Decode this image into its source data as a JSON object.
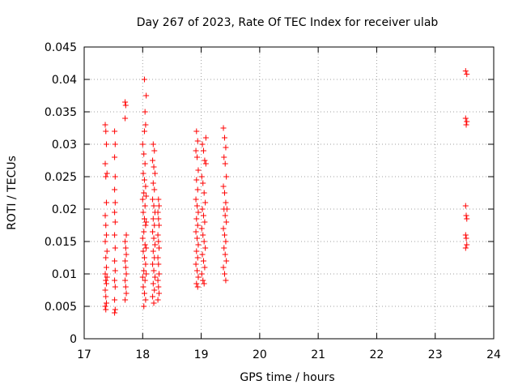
{
  "chart_data": {
    "type": "scatter",
    "title": "Day 267 of 2023, Rate Of TEC Index for receiver ulab",
    "xlabel": "GPS time / hours",
    "ylabel": "ROTI / TECUs",
    "xlim": [
      17,
      24
    ],
    "ylim": [
      0,
      0.045
    ],
    "xticks": [
      "17",
      "18",
      "19",
      "20",
      "21",
      "22",
      "23",
      "24"
    ],
    "yticks": [
      "0",
      "0.005",
      "0.01",
      "0.015",
      "0.02",
      "0.025",
      "0.03",
      "0.035",
      "0.04",
      "0.045"
    ],
    "grid": true,
    "grid_style": "dotted",
    "marker": "+",
    "marker_color": "#ff0000",
    "series": [
      {
        "points": [
          [
            17.36,
            0.033
          ],
          [
            17.37,
            0.032
          ],
          [
            17.38,
            0.03
          ],
          [
            17.36,
            0.027
          ],
          [
            17.39,
            0.0255
          ],
          [
            17.37,
            0.025
          ],
          [
            17.38,
            0.021
          ],
          [
            17.36,
            0.019
          ],
          [
            17.37,
            0.0175
          ],
          [
            17.38,
            0.016
          ],
          [
            17.36,
            0.015
          ],
          [
            17.37,
            0.0125
          ],
          [
            17.38,
            0.011
          ],
          [
            17.36,
            0.01
          ],
          [
            17.37,
            0.009
          ],
          [
            17.38,
            0.0085
          ],
          [
            17.36,
            0.0075
          ],
          [
            17.37,
            0.0065
          ],
          [
            17.38,
            0.0055
          ],
          [
            17.36,
            0.005
          ],
          [
            17.37,
            0.0045
          ],
          [
            17.39,
            0.0095
          ],
          [
            17.39,
            0.0135
          ],
          [
            17.52,
            0.032
          ],
          [
            17.53,
            0.03
          ],
          [
            17.52,
            0.028
          ],
          [
            17.53,
            0.025
          ],
          [
            17.52,
            0.023
          ],
          [
            17.53,
            0.021
          ],
          [
            17.52,
            0.0195
          ],
          [
            17.53,
            0.018
          ],
          [
            17.52,
            0.016
          ],
          [
            17.53,
            0.014
          ],
          [
            17.52,
            0.012
          ],
          [
            17.53,
            0.0105
          ],
          [
            17.52,
            0.009
          ],
          [
            17.53,
            0.008
          ],
          [
            17.52,
            0.006
          ],
          [
            17.53,
            0.0045
          ],
          [
            17.52,
            0.004
          ],
          [
            17.7,
            0.0365
          ],
          [
            17.71,
            0.036
          ],
          [
            17.7,
            0.034
          ],
          [
            17.72,
            0.016
          ],
          [
            17.7,
            0.015
          ],
          [
            17.71,
            0.014
          ],
          [
            17.72,
            0.013
          ],
          [
            17.7,
            0.012
          ],
          [
            17.71,
            0.011
          ],
          [
            17.72,
            0.01
          ],
          [
            17.7,
            0.009
          ],
          [
            17.71,
            0.008
          ],
          [
            17.72,
            0.007
          ],
          [
            17.7,
            0.006
          ],
          [
            18.03,
            0.04
          ],
          [
            18.06,
            0.0375
          ],
          [
            18.04,
            0.035
          ],
          [
            18.05,
            0.033
          ],
          [
            18.03,
            0.032
          ],
          [
            18.0,
            0.03
          ],
          [
            18.02,
            0.0285
          ],
          [
            18.04,
            0.027
          ],
          [
            18.01,
            0.0255
          ],
          [
            18.03,
            0.0245
          ],
          [
            18.05,
            0.0235
          ],
          [
            18.02,
            0.0225
          ],
          [
            18.0,
            0.0215
          ],
          [
            18.04,
            0.0205
          ],
          [
            18.01,
            0.0195
          ],
          [
            18.03,
            0.0185
          ],
          [
            18.05,
            0.0175
          ],
          [
            18.02,
            0.0165
          ],
          [
            18.0,
            0.0155
          ],
          [
            18.04,
            0.0145
          ],
          [
            18.01,
            0.0135
          ],
          [
            18.03,
            0.0125
          ],
          [
            18.05,
            0.0115
          ],
          [
            18.02,
            0.0105
          ],
          [
            18.0,
            0.0095
          ],
          [
            18.04,
            0.009
          ],
          [
            18.01,
            0.008
          ],
          [
            18.03,
            0.007
          ],
          [
            18.05,
            0.006
          ],
          [
            18.02,
            0.005
          ],
          [
            18.06,
            0.01
          ],
          [
            18.06,
            0.014
          ],
          [
            18.06,
            0.018
          ],
          [
            18.06,
            0.022
          ],
          [
            18.18,
            0.03
          ],
          [
            18.2,
            0.029
          ],
          [
            18.17,
            0.0275
          ],
          [
            18.19,
            0.0265
          ],
          [
            18.21,
            0.0255
          ],
          [
            18.18,
            0.024
          ],
          [
            18.2,
            0.023
          ],
          [
            18.17,
            0.0215
          ],
          [
            18.19,
            0.0205
          ],
          [
            18.21,
            0.0195
          ],
          [
            18.18,
            0.0185
          ],
          [
            18.2,
            0.0175
          ],
          [
            18.17,
            0.0165
          ],
          [
            18.19,
            0.0155
          ],
          [
            18.21,
            0.0145
          ],
          [
            18.18,
            0.0135
          ],
          [
            18.2,
            0.0125
          ],
          [
            18.17,
            0.0115
          ],
          [
            18.19,
            0.0105
          ],
          [
            18.21,
            0.0095
          ],
          [
            18.18,
            0.0085
          ],
          [
            18.2,
            0.0075
          ],
          [
            18.17,
            0.0065
          ],
          [
            18.19,
            0.0055
          ],
          [
            18.27,
            0.0215
          ],
          [
            18.28,
            0.0205
          ],
          [
            18.26,
            0.0195
          ],
          [
            18.27,
            0.0185
          ],
          [
            18.28,
            0.0175
          ],
          [
            18.26,
            0.016
          ],
          [
            18.27,
            0.015
          ],
          [
            18.28,
            0.014
          ],
          [
            18.26,
            0.0125
          ],
          [
            18.27,
            0.0115
          ],
          [
            18.28,
            0.01
          ],
          [
            18.26,
            0.009
          ],
          [
            18.27,
            0.008
          ],
          [
            18.28,
            0.007
          ],
          [
            18.26,
            0.006
          ],
          [
            18.92,
            0.032
          ],
          [
            18.94,
            0.0305
          ],
          [
            18.91,
            0.029
          ],
          [
            18.93,
            0.028
          ],
          [
            18.95,
            0.026
          ],
          [
            18.92,
            0.0245
          ],
          [
            18.94,
            0.023
          ],
          [
            18.91,
            0.0215
          ],
          [
            18.93,
            0.0205
          ],
          [
            18.95,
            0.0195
          ],
          [
            18.92,
            0.0185
          ],
          [
            18.94,
            0.0175
          ],
          [
            18.91,
            0.0165
          ],
          [
            18.93,
            0.0155
          ],
          [
            18.95,
            0.0145
          ],
          [
            18.92,
            0.0135
          ],
          [
            18.94,
            0.0125
          ],
          [
            18.91,
            0.0115
          ],
          [
            18.93,
            0.0105
          ],
          [
            18.95,
            0.0095
          ],
          [
            18.92,
            0.0085
          ],
          [
            18.94,
            0.008
          ],
          [
            19.02,
            0.03
          ],
          [
            19.04,
            0.029
          ],
          [
            19.06,
            0.0275
          ],
          [
            19.01,
            0.025
          ],
          [
            19.03,
            0.024
          ],
          [
            19.05,
            0.0225
          ],
          [
            19.07,
            0.021
          ],
          [
            19.02,
            0.02
          ],
          [
            19.04,
            0.019
          ],
          [
            19.06,
            0.018
          ],
          [
            19.01,
            0.017
          ],
          [
            19.03,
            0.016
          ],
          [
            19.05,
            0.015
          ],
          [
            19.07,
            0.014
          ],
          [
            19.02,
            0.013
          ],
          [
            19.04,
            0.012
          ],
          [
            19.06,
            0.011
          ],
          [
            19.01,
            0.01
          ],
          [
            19.03,
            0.009
          ],
          [
            19.05,
            0.0085
          ],
          [
            19.08,
            0.031
          ],
          [
            19.08,
            0.027
          ],
          [
            19.38,
            0.0325
          ],
          [
            19.4,
            0.031
          ],
          [
            19.42,
            0.0295
          ],
          [
            19.39,
            0.028
          ],
          [
            19.41,
            0.027
          ],
          [
            19.43,
            0.025
          ],
          [
            19.38,
            0.0235
          ],
          [
            19.4,
            0.0225
          ],
          [
            19.42,
            0.021
          ],
          [
            19.39,
            0.02
          ],
          [
            19.41,
            0.019
          ],
          [
            19.43,
            0.018
          ],
          [
            19.38,
            0.017
          ],
          [
            19.4,
            0.016
          ],
          [
            19.42,
            0.015
          ],
          [
            19.39,
            0.014
          ],
          [
            19.41,
            0.013
          ],
          [
            19.43,
            0.012
          ],
          [
            19.38,
            0.011
          ],
          [
            19.4,
            0.01
          ],
          [
            19.42,
            0.009
          ],
          [
            19.44,
            0.02
          ],
          [
            23.52,
            0.0413
          ],
          [
            23.54,
            0.0408
          ],
          [
            23.52,
            0.034
          ],
          [
            23.54,
            0.0335
          ],
          [
            23.53,
            0.033
          ],
          [
            23.52,
            0.0205
          ],
          [
            23.53,
            0.019
          ],
          [
            23.54,
            0.0185
          ],
          [
            23.52,
            0.016
          ],
          [
            23.53,
            0.0155
          ],
          [
            23.54,
            0.0145
          ],
          [
            23.52,
            0.014
          ]
        ]
      }
    ]
  }
}
